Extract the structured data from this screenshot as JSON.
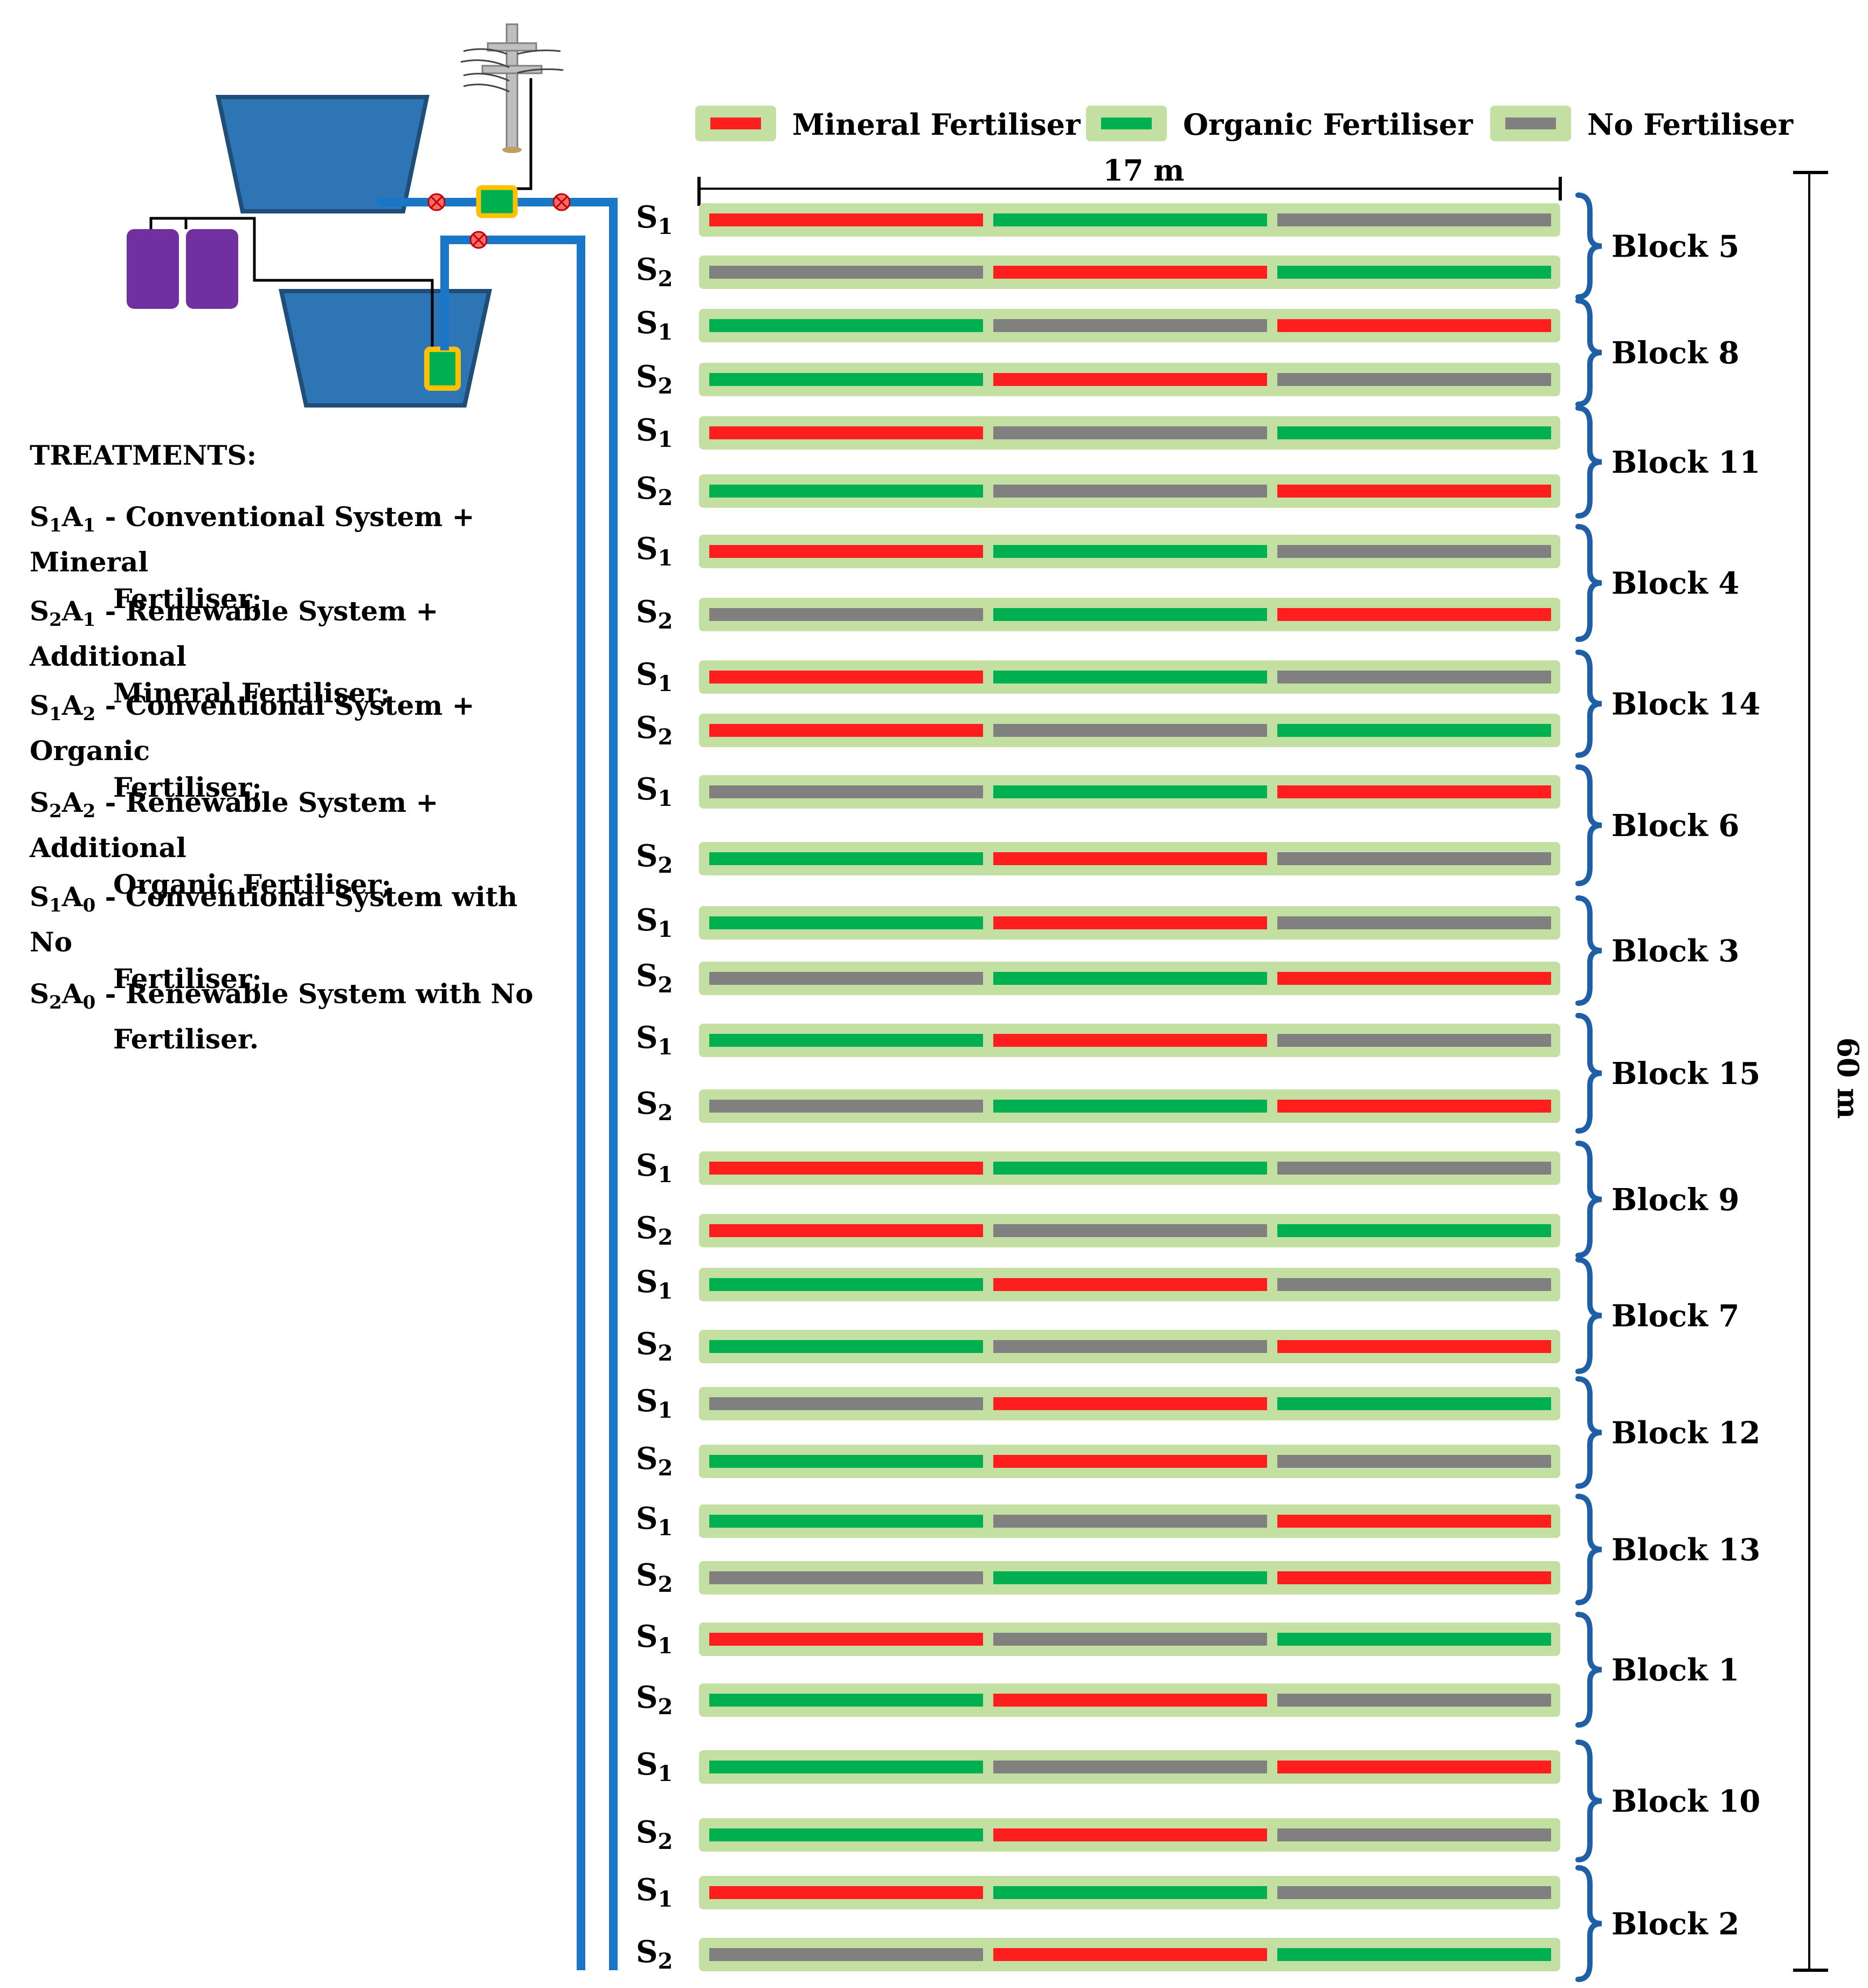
{
  "legend": {
    "mineral": "Mineral Fertiliser",
    "organic": "Organic Fertiliser",
    "none": "No Fertiliser"
  },
  "colors": {
    "mineral": "#fe1e1e",
    "organic": "#00b050",
    "none": "#808080",
    "plot_bg": "#c3dfa2",
    "pipe": "#1a76c6",
    "brace": "#1f5fa8",
    "tank": "#2e75b6",
    "tank_border": "#1f4e79",
    "drum": "#7030a0",
    "pump": "#ffc000",
    "valve": "#ff4d4d"
  },
  "dimensions": {
    "width": "17 m",
    "length": "60 m"
  },
  "subplot_labels": {
    "s1": "S1",
    "s2": "S2"
  },
  "treatments": {
    "title": "TREATMENTS:",
    "items": [
      {
        "code": "S1A1",
        "sep": " - ",
        "line1": "Conventional System + Mineral",
        "line2": "Fertiliser;"
      },
      {
        "code": "S2A1",
        "sep": " - ",
        "line1": "Renewable System  + Additional",
        "line2": "Mineral Fertiliser;"
      },
      {
        "code": "S1A2",
        "sep": " - ",
        "line1": "Conventional System + Organic",
        "line2": "Fertiliser;"
      },
      {
        "code": "S2A2",
        "sep": " - ",
        "line1": "Renewable System + Additional",
        "line2": "Organic Fertiliser;"
      },
      {
        "code": "S1A0",
        "sep": " - ",
        "line1": "Conventional System with No",
        "line2": "Fertiliser;"
      },
      {
        "code": "S2A0",
        "sep": " - ",
        "line1": "Renewable System with No",
        "line2": "Fertiliser."
      }
    ]
  },
  "blocks": [
    {
      "label": "Block 5",
      "s1": [
        "mineral",
        "organic",
        "none"
      ],
      "s2": [
        "none",
        "mineral",
        "organic"
      ]
    },
    {
      "label": "Block 8",
      "s1": [
        "organic",
        "none",
        "mineral"
      ],
      "s2": [
        "organic",
        "mineral",
        "none"
      ]
    },
    {
      "label": "Block 11",
      "s1": [
        "mineral",
        "none",
        "organic"
      ],
      "s2": [
        "organic",
        "none",
        "mineral"
      ]
    },
    {
      "label": "Block 4",
      "s1": [
        "mineral",
        "organic",
        "none"
      ],
      "s2": [
        "none",
        "organic",
        "mineral"
      ]
    },
    {
      "label": "Block 14",
      "s1": [
        "mineral",
        "organic",
        "none"
      ],
      "s2": [
        "mineral",
        "none",
        "organic"
      ]
    },
    {
      "label": "Block 6",
      "s1": [
        "none",
        "organic",
        "mineral"
      ],
      "s2": [
        "organic",
        "mineral",
        "none"
      ]
    },
    {
      "label": "Block 3",
      "s1": [
        "organic",
        "mineral",
        "none"
      ],
      "s2": [
        "none",
        "organic",
        "mineral"
      ]
    },
    {
      "label": "Block 15",
      "s1": [
        "organic",
        "mineral",
        "none"
      ],
      "s2": [
        "none",
        "organic",
        "mineral"
      ]
    },
    {
      "label": "Block 9",
      "s1": [
        "mineral",
        "organic",
        "none"
      ],
      "s2": [
        "mineral",
        "none",
        "organic"
      ]
    },
    {
      "label": "Block 7",
      "s1": [
        "organic",
        "mineral",
        "none"
      ],
      "s2": [
        "organic",
        "none",
        "mineral"
      ]
    },
    {
      "label": "Block 12",
      "s1": [
        "none",
        "mineral",
        "organic"
      ],
      "s2": [
        "organic",
        "mineral",
        "none"
      ]
    },
    {
      "label": "Block 13",
      "s1": [
        "organic",
        "none",
        "mineral"
      ],
      "s2": [
        "none",
        "organic",
        "mineral"
      ]
    },
    {
      "label": "Block 1",
      "s1": [
        "mineral",
        "none",
        "organic"
      ],
      "s2": [
        "organic",
        "mineral",
        "none"
      ]
    },
    {
      "label": "Block 10",
      "s1": [
        "organic",
        "none",
        "mineral"
      ],
      "s2": [
        "organic",
        "mineral",
        "none"
      ]
    },
    {
      "label": "Block 2",
      "s1": [
        "mineral",
        "organic",
        "none"
      ],
      "s2": [
        "none",
        "mineral",
        "organic"
      ]
    }
  ]
}
